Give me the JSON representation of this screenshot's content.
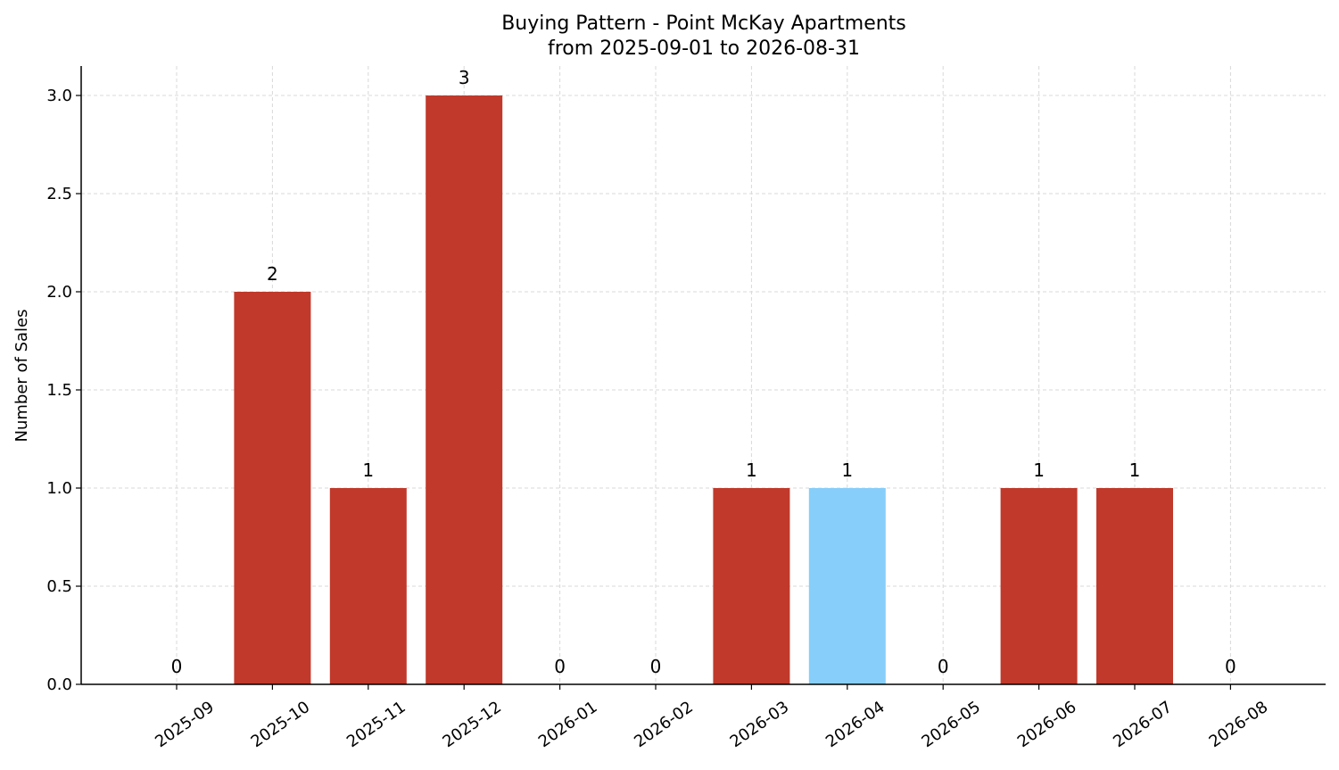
{
  "chart_data": {
    "type": "bar",
    "title": "Buying Pattern - Point McKay Apartments",
    "subtitle": "from 2025-09-01 to 2026-08-31",
    "xlabel": "",
    "ylabel": "Number of Sales",
    "ylim": [
      0,
      3.15
    ],
    "yticks": [
      "0.0",
      "0.5",
      "1.0",
      "1.5",
      "2.0",
      "2.5",
      "3.0"
    ],
    "categories": [
      "2025-09",
      "2025-10",
      "2025-11",
      "2025-12",
      "2026-01",
      "2026-02",
      "2026-03",
      "2026-04",
      "2026-05",
      "2026-06",
      "2026-07",
      "2026-08"
    ],
    "values": [
      0,
      2,
      1,
      3,
      0,
      0,
      1,
      1,
      0,
      1,
      1,
      0
    ],
    "bar_labels": [
      "0",
      "2",
      "1",
      "3",
      "0",
      "0",
      "1",
      "1",
      "0",
      "1",
      "1",
      "0"
    ],
    "highlight_category": "2026-04",
    "colors": {
      "bar": "#c0392b",
      "highlight": "#87cefa"
    },
    "grid": true,
    "legend": "none"
  }
}
